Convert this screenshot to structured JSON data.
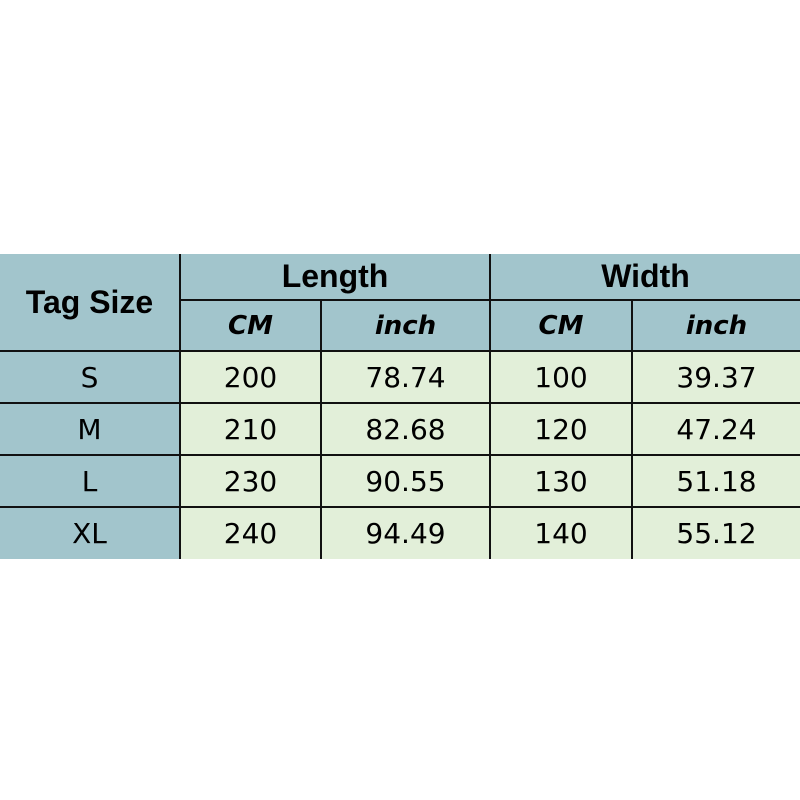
{
  "table": {
    "corner": "Tag Size",
    "groups": [
      "Length",
      "Width"
    ],
    "units": [
      "CM",
      "inch",
      "CM",
      "inch"
    ],
    "rows": [
      {
        "size": "S",
        "values": [
          "200",
          "78.74",
          "100",
          "39.37"
        ]
      },
      {
        "size": "M",
        "values": [
          "210",
          "82.68",
          "120",
          "47.24"
        ]
      },
      {
        "size": "L",
        "values": [
          "230",
          "90.55",
          "130",
          "51.18"
        ]
      },
      {
        "size": "XL",
        "values": [
          "240",
          "94.49",
          "140",
          "55.12"
        ]
      }
    ]
  },
  "colors": {
    "header": "#a2c5cc",
    "cell": "#e2efd9"
  }
}
